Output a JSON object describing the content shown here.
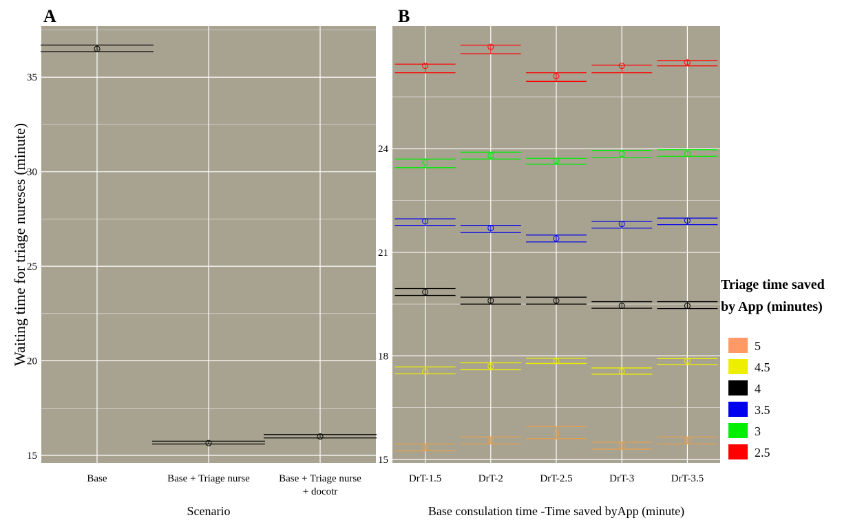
{
  "chart_data": [
    {
      "panel": "A",
      "type": "errorbar",
      "xlabel": "Scenario",
      "ylabel": "Waiting time for triage nureses (minute)",
      "categories": [
        "Base",
        "Base + Triage nurse",
        "Base + Triage nurse\n+ docotr"
      ],
      "yticks": [
        15,
        20,
        25,
        30,
        35
      ],
      "ylim": [
        14.6,
        37.7
      ],
      "grid": true,
      "series": [
        {
          "color": "#000000",
          "points": [
            {
              "x": "Base",
              "y": 36.5,
              "lower": 36.35,
              "upper": 36.7
            },
            {
              "x": "Base + Triage nurse",
              "y": 15.65,
              "lower": 15.6,
              "upper": 15.75
            },
            {
              "x": "Base + Triage nurse\n+ docotr",
              "y": 16.0,
              "lower": 15.92,
              "upper": 16.1
            }
          ]
        }
      ]
    },
    {
      "panel": "B",
      "type": "errorbar",
      "xlabel": "Base consulation time -Time saved byApp (minute)",
      "ylabel": "",
      "categories": [
        "DrT-1.5",
        "DrT-2",
        "DrT-2.5",
        "DrT-3",
        "DrT-3.5"
      ],
      "yticks": [
        15,
        18,
        21,
        24
      ],
      "ylim": [
        14.9,
        27.55
      ],
      "grid": true,
      "legend": {
        "title": "Triage time saved\nby App (minutes)",
        "position": "right"
      },
      "series": [
        {
          "name": "2.5",
          "color": "#ff0000",
          "points": [
            {
              "x": "DrT-1.5",
              "y": 26.4,
              "lower": 26.2,
              "upper": 26.45
            },
            {
              "x": "DrT-2",
              "y": 26.95,
              "lower": 26.75,
              "upper": 27.0
            },
            {
              "x": "DrT-2.5",
              "y": 26.1,
              "lower": 25.95,
              "upper": 26.2
            },
            {
              "x": "DrT-3",
              "y": 26.4,
              "lower": 26.2,
              "upper": 26.42
            },
            {
              "x": "DrT-3.5",
              "y": 26.5,
              "lower": 26.4,
              "upper": 26.55
            }
          ]
        },
        {
          "name": "3",
          "color": "#00ee00",
          "points": [
            {
              "x": "DrT-1.5",
              "y": 23.6,
              "lower": 23.45,
              "upper": 23.7
            },
            {
              "x": "DrT-2",
              "y": 23.8,
              "lower": 23.7,
              "upper": 23.9
            },
            {
              "x": "DrT-2.5",
              "y": 23.65,
              "lower": 23.55,
              "upper": 23.72
            },
            {
              "x": "DrT-3",
              "y": 23.85,
              "lower": 23.75,
              "upper": 23.95
            },
            {
              "x": "DrT-3.5",
              "y": 23.85,
              "lower": 23.78,
              "upper": 23.97
            }
          ]
        },
        {
          "name": "3.5",
          "color": "#0000ee",
          "points": [
            {
              "x": "DrT-1.5",
              "y": 21.9,
              "lower": 21.78,
              "upper": 21.97
            },
            {
              "x": "DrT-2",
              "y": 21.7,
              "lower": 21.58,
              "upper": 21.78
            },
            {
              "x": "DrT-2.5",
              "y": 21.4,
              "lower": 21.3,
              "upper": 21.5
            },
            {
              "x": "DrT-3",
              "y": 21.82,
              "lower": 21.7,
              "upper": 21.9
            },
            {
              "x": "DrT-3.5",
              "y": 21.92,
              "lower": 21.8,
              "upper": 21.99
            }
          ]
        },
        {
          "name": "4",
          "color": "#000000",
          "points": [
            {
              "x": "DrT-1.5",
              "y": 19.85,
              "lower": 19.75,
              "upper": 19.95
            },
            {
              "x": "DrT-2",
              "y": 19.6,
              "lower": 19.5,
              "upper": 19.7
            },
            {
              "x": "DrT-2.5",
              "y": 19.6,
              "lower": 19.5,
              "upper": 19.7
            },
            {
              "x": "DrT-3",
              "y": 19.45,
              "lower": 19.38,
              "upper": 19.57
            },
            {
              "x": "DrT-3.5",
              "y": 19.45,
              "lower": 19.37,
              "upper": 19.57
            }
          ]
        },
        {
          "name": "4.5",
          "color": "#eeee00",
          "points": [
            {
              "x": "DrT-1.5",
              "y": 17.55,
              "lower": 17.48,
              "upper": 17.68
            },
            {
              "x": "DrT-2",
              "y": 17.7,
              "lower": 17.6,
              "upper": 17.8
            },
            {
              "x": "DrT-2.5",
              "y": 17.85,
              "lower": 17.78,
              "upper": 17.93
            },
            {
              "x": "DrT-3",
              "y": 17.55,
              "lower": 17.47,
              "upper": 17.65
            },
            {
              "x": "DrT-3.5",
              "y": 17.85,
              "lower": 17.75,
              "upper": 17.92
            }
          ]
        },
        {
          "name": "5",
          "color": "#ff9966",
          "points": [
            {
              "x": "DrT-1.5",
              "y": 15.35,
              "lower": 15.25,
              "upper": 15.45
            },
            {
              "x": "DrT-2",
              "y": 15.55,
              "lower": 15.45,
              "upper": 15.65
            },
            {
              "x": "DrT-2.5",
              "y": 15.75,
              "lower": 15.6,
              "upper": 15.95
            },
            {
              "x": "DrT-3",
              "y": 15.4,
              "lower": 15.3,
              "upper": 15.5
            },
            {
              "x": "DrT-3.5",
              "y": 15.55,
              "lower": 15.45,
              "upper": 15.65
            }
          ]
        }
      ],
      "legend_order": [
        "5",
        "4.5",
        "4",
        "3.5",
        "3",
        "2.5"
      ]
    }
  ],
  "series_overrides_note_removed": true,
  "errorbar_colors_B": {
    "5": "#e8a04a"
  }
}
